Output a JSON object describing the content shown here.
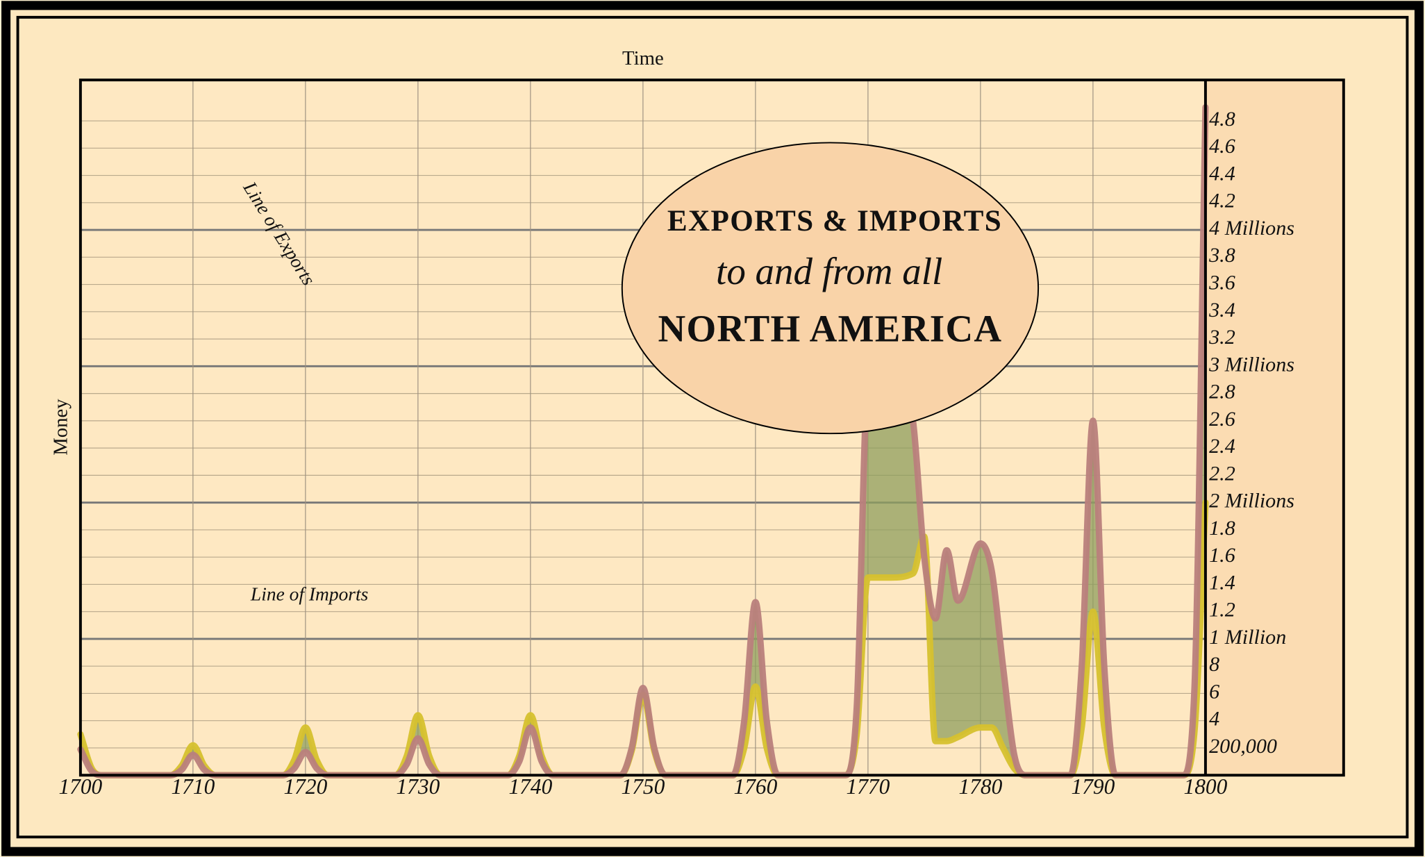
{
  "chart_data": {
    "type": "line",
    "title": [
      "EXPORTS & IMPORTS",
      "to and from all",
      "NORTH AMERICA"
    ],
    "x_label": "Time",
    "y_label": "Money",
    "x": [
      1700,
      1701,
      1702,
      1708,
      1709,
      1710,
      1711,
      1712,
      1718,
      1719,
      1720,
      1721,
      1722,
      1728,
      1729,
      1730,
      1731,
      1732,
      1738,
      1739,
      1740,
      1741,
      1742,
      1748,
      1749,
      1750,
      1751,
      1752,
      1758,
      1759,
      1760,
      1761,
      1762,
      1768,
      1769,
      1770,
      1772,
      1774,
      1775,
      1776,
      1777,
      1778,
      1780,
      1781,
      1782,
      1783,
      1784,
      1788,
      1789,
      1790,
      1791,
      1792,
      1798,
      1799,
      1800
    ],
    "series": [
      {
        "name": "Line of Exports",
        "color": "#b9807c",
        "values": [
          0.19,
          0.03,
          0,
          0,
          0.04,
          0.15,
          0.04,
          0,
          0,
          0.05,
          0.17,
          0.05,
          0,
          0,
          0.08,
          0.27,
          0.08,
          0,
          0,
          0.1,
          0.35,
          0.1,
          0,
          0,
          0.2,
          0.64,
          0.2,
          0,
          0,
          0.4,
          1.27,
          0.4,
          0,
          0,
          0.5,
          2.9,
          3.0,
          2.6,
          1.6,
          1.15,
          1.65,
          1.28,
          1.7,
          1.5,
          0.8,
          0.15,
          0,
          0,
          0.8,
          2.6,
          0.8,
          0,
          0,
          0.6,
          4.9
        ]
      },
      {
        "name": "Line of Imports",
        "color": "#d6c12e",
        "values": [
          0.3,
          0.05,
          0,
          0,
          0.07,
          0.22,
          0.07,
          0,
          0,
          0.11,
          0.35,
          0.11,
          0,
          0,
          0.14,
          0.44,
          0.14,
          0,
          0,
          0.14,
          0.44,
          0.14,
          0,
          0,
          0.18,
          0.59,
          0.18,
          0,
          0,
          0.2,
          0.65,
          0.2,
          0,
          0,
          0.3,
          1.45,
          1.45,
          1.48,
          1.75,
          0.25,
          0.25,
          0.28,
          0.35,
          0.35,
          0.2,
          0.05,
          0,
          0,
          0.35,
          1.2,
          0.35,
          0,
          0,
          0.3,
          2.0
        ]
      }
    ],
    "fill_between_color": "#8f9f5e",
    "xlim": [
      1700,
      1800
    ],
    "xticks": [
      1700,
      1710,
      1720,
      1730,
      1740,
      1750,
      1760,
      1770,
      1780,
      1790,
      1800
    ],
    "ylim": [
      0,
      5.1
    ],
    "yticks": [
      {
        "value": 0.2,
        "label": "200,000"
      },
      {
        "value": 0.4,
        "label": "4"
      },
      {
        "value": 0.6,
        "label": "6"
      },
      {
        "value": 0.8,
        "label": "8"
      },
      {
        "value": 1,
        "label": "1 Million"
      },
      1.2,
      1.4,
      1.6,
      1.8,
      {
        "value": 2,
        "label": "2 Millions"
      },
      2.2,
      2.4,
      2.6,
      2.8,
      {
        "value": 3,
        "label": "3 Millions"
      },
      3.2,
      3.4,
      3.6,
      3.8,
      {
        "value": 4,
        "label": "4 Millions"
      },
      4.2,
      4.4,
      4.6,
      4.8
    ],
    "grid": true
  }
}
